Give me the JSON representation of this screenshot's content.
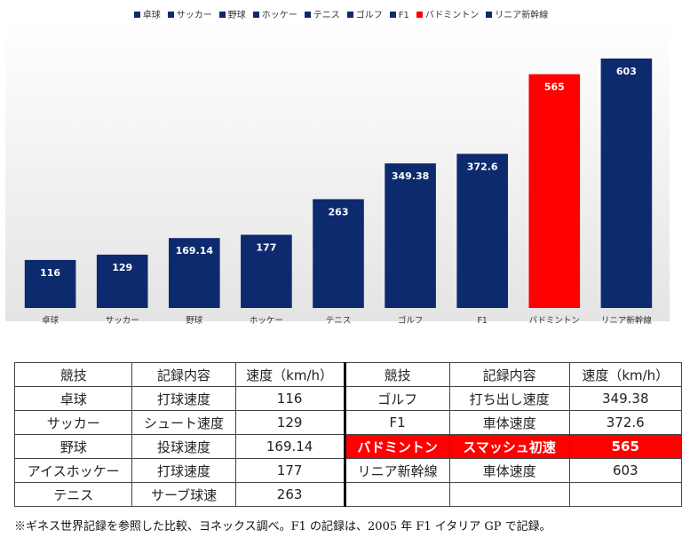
{
  "chart_data": {
    "type": "bar",
    "categories": [
      "卓球",
      "サッカー",
      "野球",
      "ホッケー",
      "テニス",
      "ゴルフ",
      "F1",
      "バドミントン",
      "リニア新幹線"
    ],
    "values": [
      116,
      129,
      169.14,
      177,
      263,
      349.38,
      372.6,
      565,
      603
    ],
    "value_labels": [
      "116",
      "129",
      "169.14",
      "177",
      "263",
      "349.38",
      "372.6",
      "565",
      "603"
    ],
    "colors": [
      "#0d2a6e",
      "#0d2a6e",
      "#0d2a6e",
      "#0d2a6e",
      "#0d2a6e",
      "#0d2a6e",
      "#0d2a6e",
      "#ff0000",
      "#0d2a6e"
    ],
    "legend": {
      "position": "top"
    },
    "ylim": [
      0,
      680
    ],
    "grid": false,
    "title": "",
    "xlabel": "",
    "ylabel": ""
  },
  "table": {
    "left_headers": [
      "競技",
      "記録内容",
      "速度（km/h）"
    ],
    "right_headers": [
      "競技",
      "記録内容",
      "速度（km/h）"
    ],
    "left_rows": [
      [
        "卓球",
        "打球速度",
        "116"
      ],
      [
        "サッカー",
        "シュート速度",
        "129"
      ],
      [
        "野球",
        "投球速度",
        "169.14"
      ],
      [
        "アイスホッケー",
        "打球速度",
        "177"
      ],
      [
        "テニス",
        "サーブ球速",
        "263"
      ]
    ],
    "right_rows": [
      [
        "ゴルフ",
        "打ち出し速度",
        "349.38"
      ],
      [
        "F1",
        "車体速度",
        "372.6"
      ],
      [
        "バドミントン",
        "スマッシュ初速",
        "565"
      ],
      [
        "リニア新幹線",
        "車体速度",
        "603"
      ],
      [
        "",
        "",
        ""
      ]
    ],
    "highlight_row": "バドミントン",
    "highlight_color": "#ff0000"
  },
  "footnote": "※ギネス世界記録を参照した比較、ヨネックス調べ。F1 の記録は、2005 年 F1 イタリア GP で記録。"
}
